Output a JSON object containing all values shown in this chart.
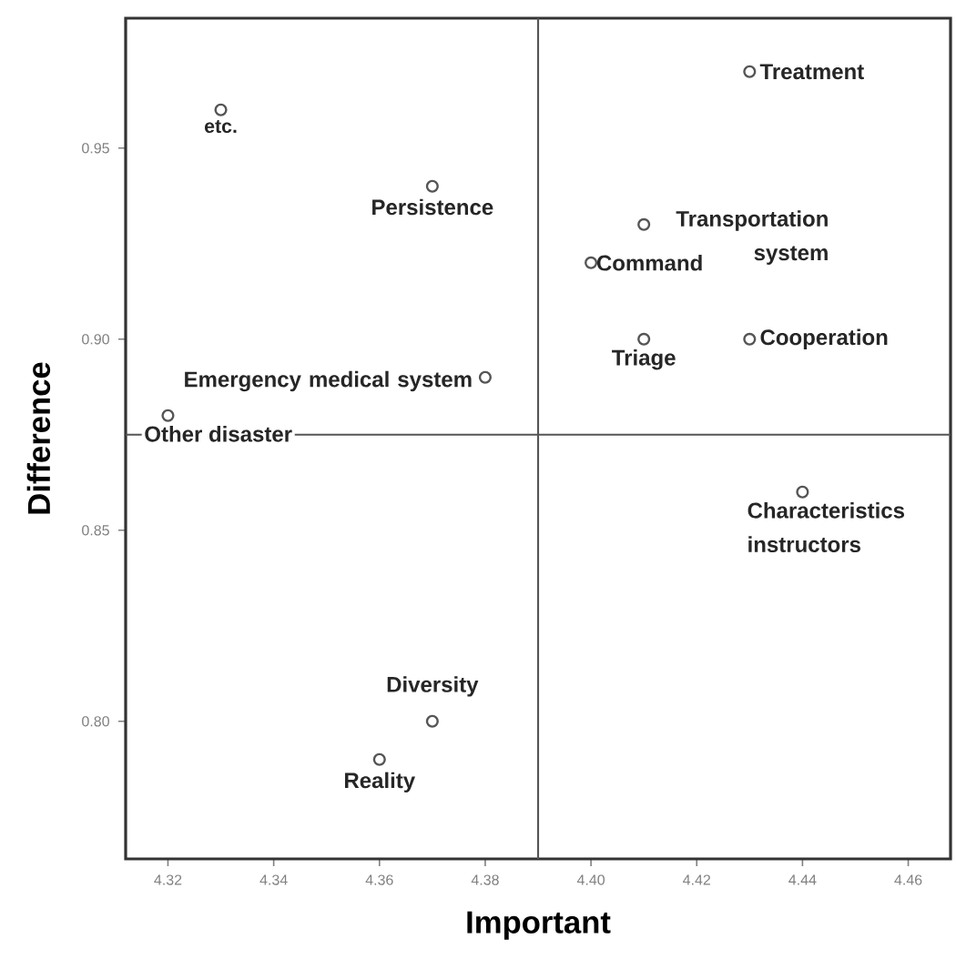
{
  "chart_data": {
    "type": "scatter",
    "xlabel": "Important",
    "ylabel": "Difference",
    "x": [
      4.33,
      4.37,
      4.38,
      4.32,
      4.43,
      4.41,
      4.4,
      4.41,
      4.43,
      4.44,
      4.37,
      4.36
    ],
    "values": [
      0.96,
      0.94,
      0.89,
      0.88,
      0.97,
      0.93,
      0.92,
      0.9,
      0.9,
      0.86,
      0.8,
      0.79
    ],
    "color": "#555555",
    "marker": "circle",
    "xlim": [
      4.312,
      4.468
    ],
    "ylim": [
      0.764,
      0.984
    ],
    "xticks": [
      4.32,
      4.34,
      4.36,
      4.38,
      {
        "value": 4.4,
        "label": "4.40"
      },
      4.42,
      4.44,
      4.46
    ],
    "yticks": [
      {
        "value": 0.8,
        "label": "0.80"
      },
      0.85,
      {
        "value": 0.9,
        "label": "0.90"
      },
      0.95
    ],
    "grid": false,
    "legend": false,
    "ref_lines": [
      {
        "axis": "x",
        "value": 4.39,
        "color": "#555555"
      },
      {
        "axis": "y",
        "value": 0.875,
        "color": "#555555"
      }
    ],
    "annotations": [
      {
        "text": "etc.",
        "x": 4.33,
        "y": 0.96
      },
      {
        "text": "Persistence",
        "x": 4.37,
        "y": 0.94
      },
      {
        "text": "Emergency medical system",
        "x": 4.38,
        "y": 0.89
      },
      {
        "text": "Other disaster",
        "x": 4.32,
        "y": 0.88
      },
      {
        "text": "Treatment",
        "x": 4.43,
        "y": 0.97
      },
      {
        "text": "Transportation system",
        "x": 4.41,
        "y": 0.93
      },
      {
        "text": "Command",
        "x": 4.4,
        "y": 0.92
      },
      {
        "text": "Triage",
        "x": 4.41,
        "y": 0.9
      },
      {
        "text": "Cooperation",
        "x": 4.43,
        "y": 0.9
      },
      {
        "text": "Characteristics instructors",
        "x": 4.44,
        "y": 0.86
      },
      {
        "text": "Diversity",
        "x": 4.37,
        "y": 0.8
      },
      {
        "text": "Reality",
        "x": 4.36,
        "y": 0.79
      }
    ]
  }
}
